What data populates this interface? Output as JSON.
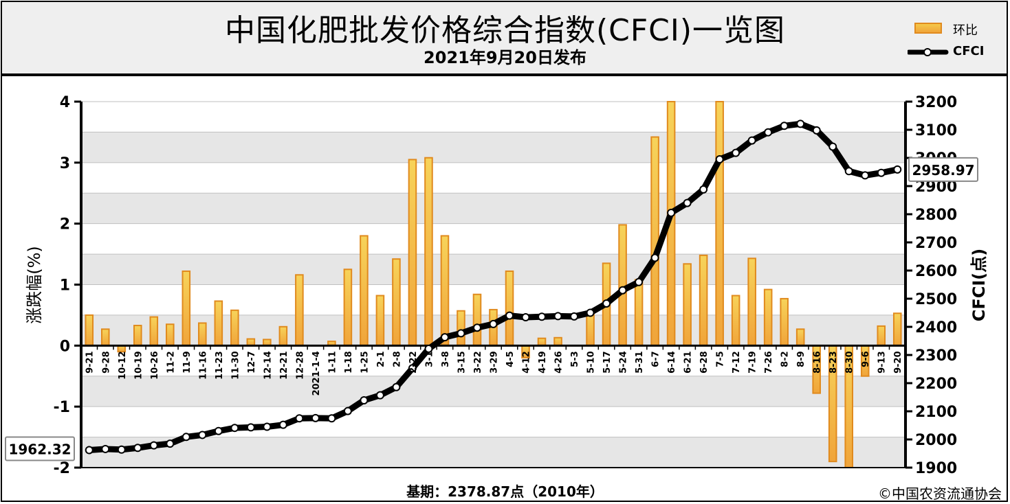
{
  "header": {
    "title": "中国化肥批发价格综合指数(CFCI)一览图",
    "subtitle": "2021年9月20日发布"
  },
  "legend": {
    "bar_label": "环比",
    "line_label": "CFCI"
  },
  "footer": {
    "base_text": "基期：2378.87点（2010年）",
    "credit": "©中国农资流通协会"
  },
  "colors": {
    "bar_fill_top": "#f7d35a",
    "bar_fill_bottom": "#f0a43a",
    "bar_stroke": "#e08a1e",
    "line": "#000000",
    "marker_fill": "#ffffff",
    "band_gray": "#e6e6e6",
    "grid": "#bfbfbf"
  },
  "chart_data": {
    "type": "bar+line",
    "ylabel": "涨跌幅(%)",
    "y2label": "CFCI(点)",
    "ylim": [
      -2,
      4
    ],
    "yticks": [
      -2,
      -1,
      0,
      1,
      2,
      3,
      4
    ],
    "y2lim": [
      1900,
      3200
    ],
    "y2ticks": [
      1900,
      2000,
      2100,
      2200,
      2300,
      2400,
      2500,
      2600,
      2700,
      2800,
      2900,
      3000,
      3100,
      3200
    ],
    "categories": [
      "9-21",
      "9-28",
      "10-12",
      "10-19",
      "10-26",
      "11-2",
      "11-9",
      "11-16",
      "11-23",
      "11-30",
      "12-7",
      "12-14",
      "12-21",
      "12-28",
      "2021-1-4",
      "1-11",
      "1-18",
      "1-25",
      "2-1",
      "2-8",
      "2-22",
      "3-1",
      "3-8",
      "3-15",
      "3-22",
      "3-29",
      "4-5",
      "4-12",
      "4-19",
      "4-26",
      "5-3",
      "5-10",
      "5-17",
      "5-24",
      "5-31",
      "6-7",
      "6-14",
      "6-21",
      "6-28",
      "7-5",
      "7-12",
      "7-19",
      "7-26",
      "8-2",
      "8-9",
      "8-16",
      "8-23",
      "8-30",
      "9-6",
      "9-13",
      "9-20"
    ],
    "series": [
      {
        "name": "环比",
        "type": "bar",
        "values": [
          0.5,
          0.27,
          -0.1,
          0.33,
          0.47,
          0.35,
          1.22,
          0.37,
          0.73,
          0.58,
          0.11,
          0.1,
          0.31,
          1.16,
          0,
          0.07,
          1.25,
          1.8,
          0.82,
          1.42,
          3.05,
          3.08,
          1.8,
          0.57,
          0.84,
          0.59,
          1.22,
          -0.2,
          0.12,
          0.13,
          0,
          0.55,
          1.35,
          1.98,
          1.08,
          3.42,
          4.0,
          1.34,
          1.48,
          4.0,
          0.82,
          1.43,
          0.92,
          0.77,
          0.27,
          -0.78,
          -1.9,
          -2.0,
          -0.5,
          0.32,
          0.53
        ]
      },
      {
        "name": "CFCI",
        "type": "line",
        "values": [
          1962.32,
          1966,
          1964,
          1970,
          1979,
          1985,
          2009,
          2016,
          2030,
          2041,
          2043,
          2045,
          2052,
          2075,
          2076,
          2075,
          2101,
          2139,
          2157,
          2186,
          2253,
          2322,
          2363,
          2377,
          2397,
          2410,
          2440,
          2434,
          2436,
          2438,
          2437,
          2450,
          2483,
          2530,
          2559,
          2645,
          2805,
          2840,
          2888,
          2995,
          3018,
          3062,
          3091,
          3114,
          3121,
          3098,
          3040,
          2953,
          2938,
          2947,
          2958.97
        ]
      }
    ],
    "annotations": [
      {
        "text": "1962.32",
        "position": "left"
      },
      {
        "text": "2958.97",
        "position": "right"
      }
    ]
  }
}
